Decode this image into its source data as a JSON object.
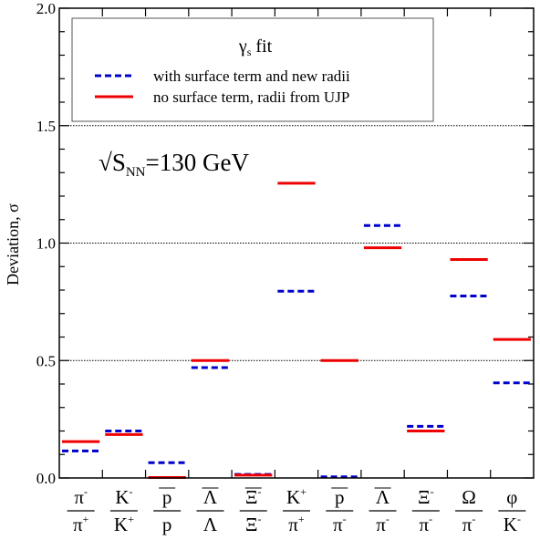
{
  "chart_data": {
    "type": "bar",
    "style": "horizontal-level-segments",
    "ylabel": "Deviation, σ",
    "ylim": [
      0.0,
      2.0
    ],
    "y_ticks": [
      "0.0",
      "0.5",
      "1.0",
      "1.5",
      "2.0"
    ],
    "y_ticks_values": [
      0.0,
      0.5,
      1.0,
      1.5,
      2.0
    ],
    "dotted_reference_lines": [
      0.5,
      1.0,
      1.5
    ],
    "annotation": "√S_NN=130 GeV",
    "annotation_parts": {
      "root": "√S",
      "sub": "NN",
      "rest": "=130 GeV"
    },
    "legend": {
      "title_base": "γ",
      "title_sub": "s",
      "title_rest": " fit",
      "placement": "top-left"
    },
    "categories": [
      {
        "num": "π",
        "num_sup": "-",
        "num_bar": false,
        "den": "π",
        "den_sup": "+",
        "den_bar": false
      },
      {
        "num": "K",
        "num_sup": "-",
        "num_bar": false,
        "den": "K",
        "den_sup": "+",
        "den_bar": false
      },
      {
        "num": "p",
        "num_sup": "",
        "num_bar": true,
        "den": "p",
        "den_sup": "",
        "den_bar": false
      },
      {
        "num": "Λ",
        "num_sup": "",
        "num_bar": true,
        "den": "Λ",
        "den_sup": "",
        "den_bar": false
      },
      {
        "num": "Ξ",
        "num_sup": "-",
        "num_bar": true,
        "den": "Ξ",
        "den_sup": "-",
        "den_bar": false
      },
      {
        "num": "K",
        "num_sup": "+",
        "num_bar": false,
        "den": "π",
        "den_sup": "+",
        "den_bar": false
      },
      {
        "num": "p",
        "num_sup": "",
        "num_bar": true,
        "den": "π",
        "den_sup": "-",
        "den_bar": false
      },
      {
        "num": "Λ",
        "num_sup": "",
        "num_bar": true,
        "den": "π",
        "den_sup": "-",
        "den_bar": false
      },
      {
        "num": "Ξ",
        "num_sup": "-",
        "num_bar": false,
        "den": "π",
        "den_sup": "-",
        "den_bar": false
      },
      {
        "num": "Ω",
        "num_sup": "",
        "num_bar": false,
        "den": "π",
        "den_sup": "-",
        "den_bar": false
      },
      {
        "num": "φ",
        "num_sup": "",
        "num_bar": false,
        "den": "K",
        "den_sup": "-",
        "den_bar": false
      }
    ],
    "series": [
      {
        "name": "with surface term and new radii",
        "color": "#0000cc",
        "dash": "dashed",
        "values": [
          0.115,
          0.2,
          0.065,
          0.47,
          0.015,
          0.795,
          0.005,
          1.075,
          0.22,
          0.775,
          0.405
        ]
      },
      {
        "name": "no surface term, radii from UJP",
        "color": "#ee0000",
        "dash": "solid",
        "values": [
          0.155,
          0.185,
          0.002,
          0.5,
          0.012,
          1.255,
          0.5,
          0.98,
          0.2,
          0.93,
          0.59
        ]
      }
    ]
  }
}
